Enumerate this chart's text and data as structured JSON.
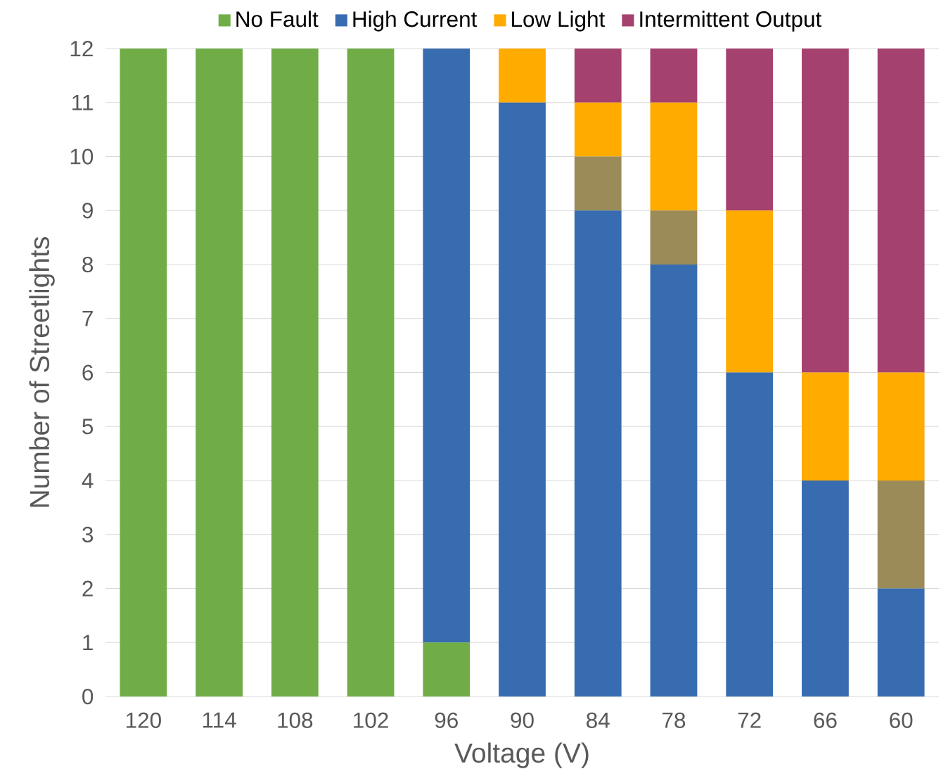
{
  "chart_data": {
    "type": "bar",
    "stacked": true,
    "xlabel": "Voltage (V)",
    "ylabel": "Number of Streetlights",
    "categories": [
      "120",
      "114",
      "108",
      "102",
      "96",
      "90",
      "84",
      "78",
      "72",
      "66",
      "60"
    ],
    "series": [
      {
        "name": "No Fault",
        "color": "#70ad47",
        "values": [
          12,
          12,
          12,
          12,
          1,
          0,
          0,
          0,
          0,
          0,
          0
        ]
      },
      {
        "name": "High Current",
        "color": "#386cb0",
        "values": [
          0,
          0,
          0,
          0,
          11,
          11,
          9,
          8,
          6,
          4,
          2
        ]
      },
      {
        "color": "#9b8b58",
        "values": [
          0,
          0,
          0,
          0,
          0,
          0,
          1,
          1,
          0,
          0,
          2
        ]
      },
      {
        "name": "Low Light",
        "color": "#ffab00",
        "values": [
          0,
          0,
          0,
          0,
          0,
          1,
          1,
          2,
          3,
          2,
          2
        ]
      },
      {
        "name": "Intermittent Output",
        "color": "#a5416e",
        "values": [
          0,
          0,
          0,
          0,
          0,
          0,
          1,
          1,
          3,
          6,
          6
        ]
      }
    ],
    "ylim": [
      0,
      12
    ],
    "yticks": [
      0,
      1,
      2,
      3,
      4,
      5,
      6,
      7,
      8,
      9,
      10,
      11,
      12
    ],
    "grid": "y",
    "legend": "top"
  }
}
